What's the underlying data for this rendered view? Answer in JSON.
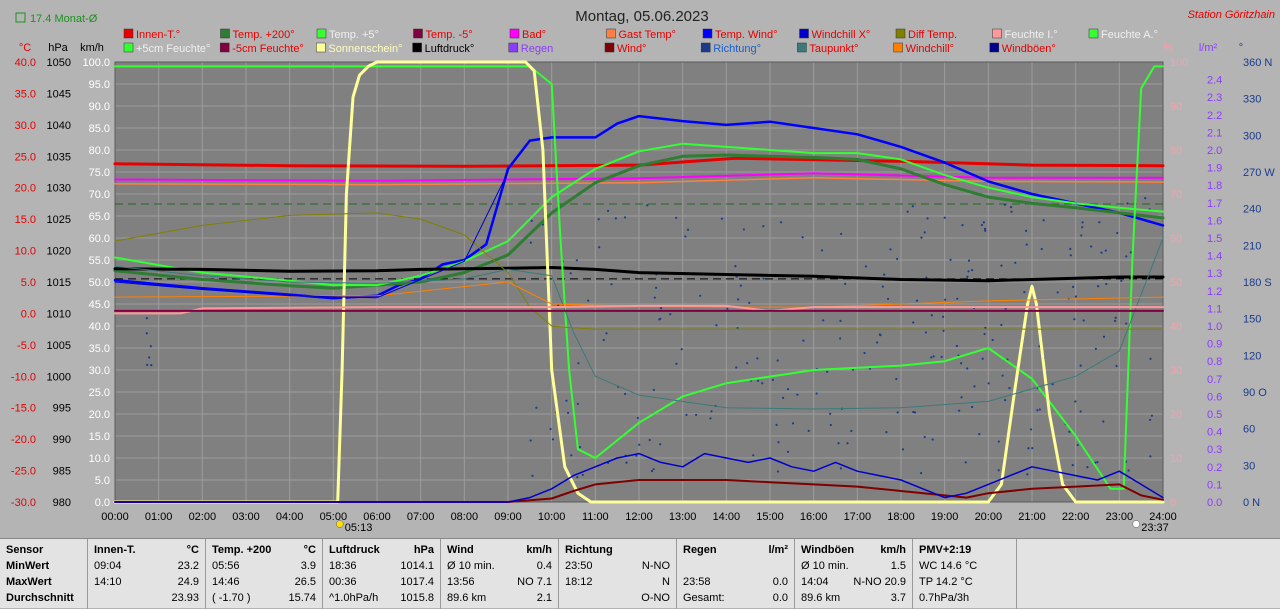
{
  "header": {
    "title": "Montag, 05.06.2023",
    "station": "Station Göritzhain",
    "monthly_avg": "17.4 Monat-Ø"
  },
  "colors": {
    "background": "#b4b4b4",
    "plot": "#808080",
    "grid": "#9c9c9c",
    "temp_axis": "#e60000",
    "hpa_axis": "#000000",
    "kmh_axis": "#ffffff",
    "pct_axis": "#ff9cab",
    "rain_axis": "#8c3cff",
    "dir_axis": "#1a3c8c"
  },
  "legend": [
    [
      {
        "label": "Innen-T.°",
        "color": "#e60000"
      },
      {
        "label": "Temp. +200°",
        "color": "#2e7d32"
      },
      {
        "label": "Temp. +5°",
        "color": "#33ff33"
      },
      {
        "label": "Temp. -5°",
        "color": "#800040"
      },
      {
        "label": "Bad°",
        "color": "#ff00ff"
      },
      {
        "label": "Gast Temp°",
        "color": "#ff8040"
      },
      {
        "label": "Temp. Wind°",
        "color": "#0000ff"
      },
      {
        "label": "Windchill X°",
        "color": "#0000cc"
      },
      {
        "label": "Diff Temp.",
        "color": "#808000"
      },
      {
        "label": "Feuchte I.°",
        "color": "#ff9999"
      },
      {
        "label": "Feuchte A.°",
        "color": "#33ff33"
      }
    ],
    [
      {
        "label": "+5cm Feuchte°",
        "color": "#33ff33"
      },
      {
        "label": "-5cm Feuchte°",
        "color": "#800040"
      },
      {
        "label": "Sonnenschein°",
        "color": "#ffff99"
      },
      {
        "label": "Luftdruck°",
        "color": "#000000"
      },
      {
        "label": "Regen",
        "color": "#8c3cff"
      },
      {
        "label": "Wind°",
        "color": "#800000"
      },
      {
        "label": "Richtung°",
        "color": "#1a3c8c"
      },
      {
        "label": "Taupunkt°",
        "color": "#3a7a7a"
      },
      {
        "label": "Windchill°",
        "color": "#ff8000"
      },
      {
        "label": "Windböen°",
        "color": "#00008b"
      }
    ]
  ],
  "chart_data": {
    "type": "line",
    "axes": {
      "temp": {
        "unit": "°C",
        "min": -30,
        "max": 40,
        "ticks": [
          "40.0",
          "35.0",
          "30.0",
          "25.0",
          "20.0",
          "15.0",
          "10.0",
          "5.0",
          "0.0",
          "-5.0",
          "-10.0",
          "-15.0",
          "-20.0",
          "-25.0",
          "-30.0"
        ]
      },
      "hpa": {
        "unit": "hPa",
        "min": 980,
        "max": 1050,
        "ticks": [
          "1050",
          "1045",
          "1040",
          "1035",
          "1030",
          "1025",
          "1020",
          "1015",
          "1010",
          "1005",
          "1000",
          "995",
          "990",
          "985",
          "980"
        ]
      },
      "kmh": {
        "unit": "km/h",
        "min": 0,
        "max": 100,
        "ticks": [
          "100.0",
          "95.0",
          "90.0",
          "85.0",
          "80.0",
          "75.0",
          "70.0",
          "65.0",
          "60.0",
          "55.0",
          "50.0",
          "45.0",
          "40.0",
          "35.0",
          "30.0",
          "25.0",
          "20.0",
          "15.0",
          "10.0",
          "5.0",
          "0.0"
        ]
      },
      "pct": {
        "unit": "%",
        "min": 0,
        "max": 100,
        "ticks": [
          "100",
          "90",
          "80",
          "70",
          "60",
          "50",
          "40",
          "30",
          "20",
          "10",
          "0"
        ]
      },
      "rain": {
        "unit": "l/m²",
        "min": 0,
        "max": 2.5,
        "ticks": [
          "2.4",
          "2.3",
          "2.2",
          "2.1",
          "2.0",
          "1.9",
          "1.8",
          "1.7",
          "1.6",
          "1.5",
          "1.4",
          "1.3",
          "1.2",
          "1.1",
          "1.0",
          "0.9",
          "0.8",
          "0.7",
          "0.6",
          "0.5",
          "0.4",
          "0.3",
          "0.2",
          "0.1",
          "0.0"
        ]
      },
      "dir": {
        "unit": "°",
        "min": 0,
        "max": 360,
        "ticks": [
          "360 N",
          "330",
          "300",
          "270 W",
          "240",
          "210",
          "180 S",
          "150",
          "120",
          "90 O",
          "60",
          "30",
          "0 N"
        ]
      }
    },
    "x_ticks": [
      "00:00",
      "01:00",
      "02:00",
      "03:00",
      "04:00",
      "05:00",
      "06:00",
      "07:00",
      "08:00",
      "09:00",
      "10:00",
      "11:00",
      "12:00",
      "13:00",
      "14:00",
      "15:00",
      "16:00",
      "17:00",
      "18:00",
      "19:00",
      "20:00",
      "21:00",
      "22:00",
      "23:00",
      "24:00"
    ],
    "sunrise": "05:13",
    "sunset": "23:37",
    "series": [
      {
        "name": "Innen-T.°",
        "axis": "temp",
        "color": "#e60000",
        "width": 3,
        "x": [
          0,
          4,
          8,
          12,
          14.2,
          18,
          21,
          24
        ],
        "y": [
          23.8,
          23.5,
          23.4,
          23.6,
          24.7,
          24.2,
          23.6,
          23.5
        ]
      },
      {
        "name": "Bad°",
        "axis": "temp",
        "color": "#ff00ff",
        "width": 2,
        "x": [
          0,
          6,
          12,
          16,
          20,
          24
        ],
        "y": [
          21.3,
          21.1,
          21.5,
          22.3,
          21.6,
          21.6
        ]
      },
      {
        "name": "Gast Temp°",
        "axis": "temp",
        "color": "#ff8040",
        "width": 1.5,
        "x": [
          0,
          6,
          12,
          16,
          20,
          24
        ],
        "y": [
          20.6,
          20.5,
          20.8,
          21.6,
          21.0,
          20.9
        ]
      },
      {
        "name": "Temp. Wind°",
        "axis": "temp",
        "color": "#0000ff",
        "width": 2.5,
        "x": [
          0,
          2,
          4,
          5,
          6,
          6.5,
          7,
          7.5,
          8,
          8.5,
          9,
          9.5,
          10,
          11,
          11.5,
          12,
          13,
          14,
          15,
          16,
          17,
          18,
          19,
          20,
          21,
          22,
          23,
          24
        ],
        "y": [
          5.3,
          4.0,
          3.0,
          2.4,
          2.8,
          4.5,
          5.5,
          7.8,
          8.5,
          11.0,
          23.0,
          27.5,
          28.0,
          28.0,
          30.2,
          31.4,
          30.6,
          30.0,
          30.5,
          29.5,
          28.5,
          26.5,
          24.0,
          21.0,
          19.0,
          17.5,
          16.0,
          14.0
        ]
      },
      {
        "name": "Temp. +200°",
        "axis": "temp",
        "color": "#2e7d32",
        "width": 3,
        "x": [
          0,
          2,
          4,
          5,
          6,
          7,
          8,
          9,
          10,
          11,
          12,
          13,
          14,
          15,
          16,
          17,
          18,
          19,
          20,
          21,
          22,
          23,
          24
        ],
        "y": [
          6.8,
          5.4,
          4.4,
          4.0,
          4.5,
          5.0,
          6.5,
          9.3,
          16.0,
          20.8,
          23.5,
          25.0,
          25.2,
          25.0,
          24.8,
          24.5,
          23.0,
          20.5,
          18.5,
          17.5,
          16.8,
          16.0,
          15.2
        ]
      },
      {
        "name": "Temp. +5°",
        "axis": "temp",
        "color": "#33ff33",
        "width": 2,
        "x": [
          0,
          2,
          4,
          5,
          6,
          7,
          8,
          9,
          10,
          11,
          12,
          13,
          14,
          15,
          16,
          17,
          18,
          19,
          20,
          21,
          22,
          23,
          24
        ],
        "y": [
          8.9,
          6.5,
          5.2,
          4.5,
          4.5,
          6.0,
          8.3,
          11.5,
          18.5,
          23.0,
          25.8,
          27.0,
          26.5,
          26.0,
          25.5,
          25.5,
          24.5,
          22.0,
          20.0,
          18.5,
          17.5,
          16.8,
          16.2
        ]
      },
      {
        "name": "Luftdruck°",
        "axis": "hpa",
        "color": "#000000",
        "width": 3,
        "x": [
          0,
          2,
          4,
          6,
          7,
          8,
          9,
          10,
          11,
          12,
          14,
          16,
          18,
          19,
          20,
          21,
          22,
          23,
          24
        ],
        "y": [
          1017.1,
          1017.0,
          1016.7,
          1016.8,
          1017.0,
          1017.1,
          1017.2,
          1017.3,
          1017.0,
          1016.5,
          1016.2,
          1015.9,
          1015.4,
          1015.3,
          1015.2,
          1015.4,
          1015.6,
          1015.8,
          1015.8
        ]
      },
      {
        "name": "Feuchte A.°",
        "axis": "pct",
        "color": "#33ff33",
        "width": 2,
        "x": [
          0,
          9.5,
          10.0,
          10.2,
          10.4,
          10.6,
          11,
          12,
          13,
          14,
          16,
          18,
          19,
          20,
          21,
          22,
          22.8,
          23.1,
          23.3,
          23.5,
          23.8,
          24
        ],
        "y": [
          99,
          99,
          95,
          60,
          30,
          12,
          10,
          18,
          24,
          27,
          30,
          31,
          32,
          35,
          28,
          15,
          3,
          3,
          55,
          94,
          99,
          99
        ]
      },
      {
        "name": "Sonnenschein°",
        "axis": "pct",
        "color": "#ffff99",
        "width": 3,
        "x": [
          0,
          5.1,
          5.2,
          5.3,
          5.45,
          5.6,
          5.8,
          6.0,
          9.4,
          9.6,
          9.8,
          10.0,
          10.3,
          10.6,
          10.9,
          11,
          20.0,
          20.3,
          20.6,
          20.9,
          21.0,
          21.1,
          21.4,
          21.7,
          22.0,
          24
        ],
        "y": [
          0,
          0,
          30,
          70,
          92,
          97,
          99,
          100,
          100,
          98,
          80,
          30,
          8,
          2,
          0,
          0,
          0,
          4,
          25,
          45,
          49,
          45,
          20,
          4,
          0,
          0
        ]
      },
      {
        "name": "Taupunkt°",
        "axis": "temp",
        "color": "#3a7a7a",
        "width": 1,
        "x": [
          0,
          2,
          4,
          6,
          8,
          9,
          10,
          10.5,
          11,
          12,
          14,
          16,
          18,
          20,
          22,
          23,
          24
        ],
        "y": [
          7.5,
          6.0,
          5.0,
          4.8,
          5.5,
          7.0,
          6.0,
          -3.0,
          -10.0,
          -13.0,
          -15.0,
          -15.2,
          -15.0,
          -14.0,
          -10.0,
          -6.0,
          12.0
        ]
      },
      {
        "name": "Diff Temp.",
        "axis": "temp",
        "color": "#808000",
        "width": 1,
        "x": [
          0,
          2,
          4,
          6,
          7,
          8,
          9,
          9.5,
          10,
          10.5,
          11,
          14,
          18,
          22,
          24
        ],
        "y": [
          11.5,
          14.0,
          15.6,
          16.0,
          15.0,
          12.5,
          6.5,
          1.0,
          -2.0,
          -2.3,
          -2.5,
          -2.5,
          -2.5,
          -2.5,
          -2.5
        ]
      },
      {
        "name": "Windchill°",
        "axis": "temp",
        "color": "#ff8000",
        "width": 1,
        "x": [
          0,
          6,
          9,
          10,
          11,
          12,
          14,
          16,
          18,
          20,
          24
        ],
        "y": [
          2.6,
          2.8,
          5.0,
          1.5,
          1.3,
          1.2,
          1.0,
          1.0,
          1.5,
          2.0,
          2.6
        ]
      },
      {
        "name": "Feuchte I.°",
        "axis": "temp",
        "color": "#ff9999",
        "width": 2,
        "x": [
          0,
          1.5,
          2,
          6,
          9,
          10,
          12,
          14,
          15,
          16,
          20,
          21,
          22,
          24
        ],
        "y": [
          0.0,
          0.0,
          0.8,
          1.0,
          1.0,
          1.0,
          1.2,
          1.2,
          0.4,
          1.0,
          1.0,
          1.0,
          1.0,
          1.0
        ]
      },
      {
        "name": "Temp. -5°",
        "axis": "temp",
        "color": "#800040",
        "width": 2,
        "x": [
          0,
          24
        ],
        "y": [
          0.4,
          0.4
        ]
      },
      {
        "name": "Wind°",
        "axis": "kmh",
        "color": "#800000",
        "width": 2,
        "x": [
          0,
          9,
          10,
          10.5,
          11,
          12,
          13,
          14,
          15,
          16,
          17,
          18,
          19,
          19.5,
          20,
          21,
          22,
          23,
          23.5,
          24
        ],
        "y": [
          0,
          0,
          0.8,
          2.5,
          4.0,
          5.0,
          5.0,
          5.0,
          4.5,
          4.0,
          3.5,
          2.5,
          1.5,
          1.0,
          2.0,
          3.0,
          3.5,
          4.0,
          1.5,
          0.5
        ]
      },
      {
        "name": "Windböen°",
        "axis": "kmh",
        "color": "#0000cc",
        "width": 1.5,
        "x": [
          0,
          9,
          9.5,
          10,
          10.5,
          11,
          11.5,
          12,
          12.5,
          13,
          13.5,
          14,
          14.5,
          15,
          15.5,
          16,
          16.5,
          17,
          17.5,
          18,
          18.5,
          19,
          19.5,
          20,
          20.5,
          21,
          21.5,
          22,
          22.5,
          23,
          23.5,
          24
        ],
        "y": [
          0,
          0,
          1,
          3,
          6,
          8,
          10,
          11,
          9,
          8,
          11,
          10,
          9,
          10,
          8,
          7,
          9,
          7,
          6,
          5,
          3,
          1,
          2,
          4,
          6,
          8,
          7,
          6,
          5,
          7,
          4,
          1
        ]
      },
      {
        "name": "Windchill X°",
        "axis": "temp",
        "color": "#0000cc",
        "width": 1,
        "x": [
          0,
          2,
          4,
          6,
          8,
          9
        ],
        "y": [
          5.0,
          3.8,
          2.8,
          2.5,
          8.3,
          22.5
        ]
      }
    ],
    "reference_lines": [
      {
        "axis": "temp",
        "y": 17.4,
        "color": "#1f6b1f",
        "dash": "8,5"
      },
      {
        "axis": "hpa",
        "y": 1015.5,
        "color": "#000000",
        "dash": "8,5"
      }
    ]
  },
  "table": {
    "row_labels": {
      "title": "Sensor",
      "min": "MinWert",
      "max": "MaxWert",
      "avg": "Durchschnitt"
    },
    "columns": [
      {
        "name": "Innen-T.",
        "unit": "°C",
        "min_time": "09:04",
        "min_value": "23.2",
        "max_time": "14:10",
        "max_value": "24.9",
        "avg_extra": "",
        "avg_value": "23.93"
      },
      {
        "name": "Temp. +200",
        "unit": "°C",
        "min_time": "05:56",
        "min_value": "3.9",
        "max_time": "14:46",
        "max_value": "26.5",
        "avg_extra": "( -1.70 )",
        "avg_value": "15.74"
      },
      {
        "name": "Luftdruck",
        "unit": "hPa",
        "min_time": "18:36",
        "min_value": "1014.1",
        "max_time": "00:36",
        "max_value": "1017.4",
        "avg_extra": "^1.0hPa/h",
        "avg_value": "1015.8"
      },
      {
        "name": "Wind",
        "unit": "km/h",
        "min_time": "Ø 10 min.",
        "min_value": "0.4",
        "max_time": "13:56",
        "max_value": "NO 7.1",
        "avg_extra": "89.6 km",
        "avg_value": "2.1"
      },
      {
        "name": "Richtung",
        "unit": "",
        "min_time": "23:50",
        "min_value": "N-NO",
        "max_time": "18:12",
        "max_value": "N",
        "avg_extra": "",
        "avg_value": "O-NO"
      },
      {
        "name": "Regen",
        "unit": "l/m²",
        "min_time": "",
        "min_value": "",
        "max_time": "23:58",
        "max_value": "0.0",
        "avg_extra": "Gesamt:",
        "avg_value": "0.0"
      },
      {
        "name": "Windböen",
        "unit": "km/h",
        "min_time": "Ø 10 min.",
        "min_value": "1.5",
        "max_time": "14:04",
        "max_value": "N-NO 20.9",
        "avg_extra": "89.6 km",
        "avg_value": "3.7"
      },
      {
        "name": "PMV+2:19",
        "unit": "",
        "min_time": "WC 14.6 °C",
        "min_value": "",
        "max_time": "TP 14.2 °C",
        "max_value": "",
        "avg_extra": "0.7hPa/3h",
        "avg_value": ""
      }
    ]
  }
}
